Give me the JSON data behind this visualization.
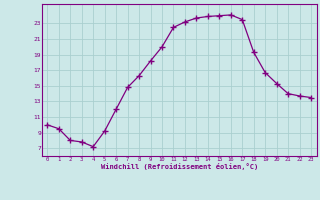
{
  "x": [
    0,
    1,
    2,
    3,
    4,
    5,
    6,
    7,
    8,
    9,
    10,
    11,
    12,
    13,
    14,
    15,
    16,
    17,
    18,
    19,
    20,
    21,
    22,
    23
  ],
  "y": [
    10.0,
    9.5,
    8.0,
    7.8,
    7.2,
    9.2,
    12.0,
    14.8,
    16.3,
    18.2,
    20.0,
    22.5,
    23.2,
    23.7,
    23.9,
    24.0,
    24.1,
    23.5,
    19.3,
    16.7,
    15.3,
    14.0,
    13.7,
    13.5
  ],
  "line_color": "#800080",
  "marker": "+",
  "marker_size": 4,
  "bg_color": "#cce8e8",
  "grid_color": "#aacfcf",
  "xlabel": "Windchill (Refroidissement éolien,°C)",
  "yticks": [
    7,
    9,
    11,
    13,
    15,
    17,
    19,
    21,
    23
  ],
  "xticks": [
    0,
    1,
    2,
    3,
    4,
    5,
    6,
    7,
    8,
    9,
    10,
    11,
    12,
    13,
    14,
    15,
    16,
    17,
    18,
    19,
    20,
    21,
    22,
    23
  ],
  "ylim": [
    6.0,
    25.5
  ],
  "xlim": [
    -0.5,
    23.5
  ],
  "xlabel_color": "#800080",
  "tick_color": "#800080",
  "axis_color": "#800080"
}
